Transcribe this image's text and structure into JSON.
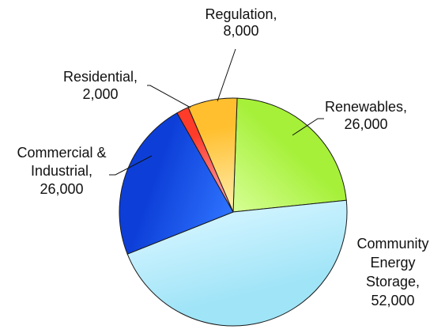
{
  "chart_data": {
    "type": "pie",
    "title": "",
    "start_angle_deg": 88,
    "direction": "clockwise",
    "slices": [
      {
        "name": "Renewables",
        "value": 26000,
        "label_lines": [
          "Renewables,",
          "26,000"
        ],
        "color": "#a6f03a",
        "color_light": "#d6ff95"
      },
      {
        "name": "Community Energy Storage",
        "value": 52000,
        "label_lines": [
          "Community",
          "Energy",
          "Storage,",
          "52,000"
        ],
        "color": "#9fe4f7",
        "color_light": "#cff3ff"
      },
      {
        "name": "Commercial & Industrial",
        "value": 26000,
        "label_lines": [
          "Commercial &",
          "Industrial,",
          "26,000"
        ],
        "color": "#0d3fd8",
        "color_light": "#2f74ff"
      },
      {
        "name": "Residential",
        "value": 2000,
        "label_lines": [
          "Residential,",
          "2,000"
        ],
        "color": "#ff3b2a",
        "color_light": "#ffb0c0"
      },
      {
        "name": "Regulation",
        "value": 8000,
        "label_lines": [
          "Regulation,",
          "8,000"
        ],
        "color": "#ffbf2e",
        "color_light": "#ffeeb0"
      }
    ]
  }
}
